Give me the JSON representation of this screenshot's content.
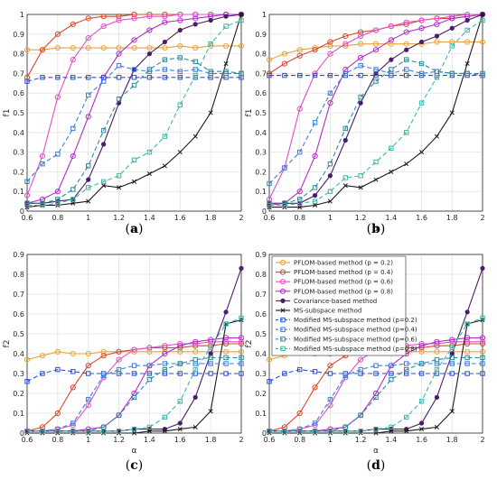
{
  "style": {
    "series": [
      {
        "color": "#e8a33a",
        "dash": "",
        "marker": "circle"
      },
      {
        "color": "#d9482b",
        "dash": "",
        "marker": "circle"
      },
      {
        "color": "#e04fc8",
        "dash": "",
        "marker": "circle"
      },
      {
        "color": "#b02fc9",
        "dash": "",
        "marker": "circle"
      },
      {
        "color": "#4a1c6b",
        "dash": "",
        "marker": "dot"
      },
      {
        "color": "#1a1a1a",
        "dash": "",
        "marker": "x"
      },
      {
        "color": "#2a4fd6",
        "dash": "5,3",
        "marker": "square"
      },
      {
        "color": "#3a7fdc",
        "dash": "5,3",
        "marker": "square"
      },
      {
        "color": "#2f8a9a",
        "dash": "5,3",
        "marker": "square"
      },
      {
        "color": "#3fb6a6",
        "dash": "5,3",
        "marker": "square"
      }
    ]
  },
  "chart_data": [
    {
      "type": "line",
      "caption_letter": "a",
      "xlabel": "α",
      "ylabel": "f1",
      "xlim": [
        0.6,
        2
      ],
      "ylim": [
        0,
        1
      ],
      "xticks": [
        "0.6",
        "0.8",
        "1",
        "1.2",
        "1.4",
        "1.6",
        "1.8",
        "2"
      ],
      "yticks": [
        "0",
        "0.1",
        "0.2",
        "0.3",
        "0.4",
        "0.5",
        "0.6",
        "0.7",
        "0.8",
        "0.9",
        "1"
      ],
      "x": [
        0.6,
        0.7,
        0.8,
        0.9,
        1.0,
        1.1,
        1.2,
        1.3,
        1.4,
        1.5,
        1.6,
        1.7,
        1.8,
        1.9,
        2.0
      ],
      "series": [
        {
          "values": [
            0.82,
            0.82,
            0.83,
            0.83,
            0.83,
            0.83,
            0.83,
            0.83,
            0.83,
            0.83,
            0.84,
            0.83,
            0.84,
            0.84,
            0.84
          ]
        },
        {
          "values": [
            0.68,
            0.82,
            0.9,
            0.95,
            0.98,
            0.99,
            0.99,
            1.0,
            1.0,
            1.0,
            1.0,
            1.0,
            1.0,
            1.0,
            1.0
          ]
        },
        {
          "values": [
            0.08,
            0.28,
            0.58,
            0.77,
            0.88,
            0.94,
            0.97,
            0.98,
            0.99,
            0.99,
            1.0,
            1.0,
            1.0,
            1.0,
            1.0
          ]
        },
        {
          "values": [
            0.04,
            0.06,
            0.1,
            0.28,
            0.48,
            0.68,
            0.8,
            0.87,
            0.92,
            0.96,
            0.97,
            0.98,
            0.99,
            1.0,
            1.0
          ]
        },
        {
          "values": [
            0.04,
            0.04,
            0.05,
            0.06,
            0.16,
            0.34,
            0.55,
            0.72,
            0.8,
            0.86,
            0.92,
            0.95,
            0.97,
            0.99,
            1.0
          ]
        },
        {
          "values": [
            0.02,
            0.03,
            0.03,
            0.04,
            0.05,
            0.13,
            0.12,
            0.15,
            0.19,
            0.23,
            0.3,
            0.38,
            0.5,
            0.75,
            1.0
          ]
        },
        {
          "values": [
            0.66,
            0.68,
            0.68,
            0.68,
            0.68,
            0.68,
            0.68,
            0.68,
            0.68,
            0.68,
            0.68,
            0.68,
            0.68,
            0.68,
            0.68
          ]
        },
        {
          "values": [
            0.15,
            0.24,
            0.29,
            0.42,
            0.59,
            0.66,
            0.74,
            0.72,
            0.71,
            0.72,
            0.71,
            0.72,
            0.7,
            0.7,
            0.7
          ]
        },
        {
          "values": [
            0.04,
            0.04,
            0.06,
            0.11,
            0.23,
            0.41,
            0.57,
            0.64,
            0.72,
            0.77,
            0.78,
            0.76,
            0.71,
            0.71,
            0.7
          ]
        },
        {
          "values": [
            0.03,
            0.03,
            0.04,
            0.06,
            0.12,
            0.15,
            0.18,
            0.26,
            0.3,
            0.38,
            0.54,
            0.69,
            0.85,
            0.94,
            0.97
          ]
        }
      ]
    },
    {
      "type": "line",
      "caption_letter": "b",
      "xlabel": "α",
      "ylabel": "f1",
      "xlim": [
        0.6,
        2
      ],
      "ylim": [
        0,
        1
      ],
      "xticks": [
        "0.6",
        "0.8",
        "1",
        "1.2",
        "1.4",
        "1.6",
        "1.8",
        "2"
      ],
      "yticks": [
        "0",
        "0.1",
        "0.2",
        "0.3",
        "0.4",
        "0.5",
        "0.6",
        "0.7",
        "0.8",
        "0.9",
        "1"
      ],
      "x": [
        0.6,
        0.7,
        0.8,
        0.9,
        1.0,
        1.1,
        1.2,
        1.3,
        1.4,
        1.5,
        1.6,
        1.7,
        1.8,
        1.9,
        2.0
      ],
      "series": [
        {
          "values": [
            0.77,
            0.8,
            0.82,
            0.83,
            0.84,
            0.84,
            0.85,
            0.85,
            0.85,
            0.85,
            0.85,
            0.86,
            0.86,
            0.86,
            0.86
          ]
        },
        {
          "values": [
            0.7,
            0.75,
            0.79,
            0.82,
            0.86,
            0.89,
            0.91,
            0.92,
            0.94,
            0.95,
            0.97,
            0.98,
            0.98,
            0.99,
            1.0
          ]
        },
        {
          "values": [
            0.06,
            0.22,
            0.52,
            0.7,
            0.8,
            0.85,
            0.89,
            0.92,
            0.94,
            0.96,
            0.97,
            0.98,
            0.99,
            1.0,
            1.0
          ]
        },
        {
          "values": [
            0.03,
            0.04,
            0.1,
            0.28,
            0.55,
            0.72,
            0.78,
            0.82,
            0.87,
            0.91,
            0.93,
            0.95,
            0.98,
            0.99,
            1.0
          ]
        },
        {
          "values": [
            0.04,
            0.04,
            0.04,
            0.08,
            0.18,
            0.36,
            0.55,
            0.7,
            0.77,
            0.82,
            0.86,
            0.89,
            0.93,
            0.97,
            1.0
          ]
        },
        {
          "values": [
            0.02,
            0.02,
            0.02,
            0.03,
            0.05,
            0.13,
            0.12,
            0.16,
            0.2,
            0.24,
            0.3,
            0.38,
            0.5,
            0.75,
            1.0
          ]
        },
        {
          "values": [
            0.69,
            0.69,
            0.69,
            0.69,
            0.69,
            0.69,
            0.69,
            0.69,
            0.69,
            0.69,
            0.69,
            0.69,
            0.69,
            0.69,
            0.69
          ]
        },
        {
          "values": [
            0.14,
            0.22,
            0.3,
            0.45,
            0.6,
            0.7,
            0.74,
            0.72,
            0.7,
            0.72,
            0.7,
            0.71,
            0.7,
            0.7,
            0.69
          ]
        },
        {
          "values": [
            0.04,
            0.04,
            0.06,
            0.12,
            0.24,
            0.42,
            0.58,
            0.66,
            0.72,
            0.77,
            0.75,
            0.71,
            0.7,
            0.7,
            0.7
          ]
        },
        {
          "values": [
            0.03,
            0.03,
            0.04,
            0.05,
            0.1,
            0.17,
            0.18,
            0.25,
            0.32,
            0.4,
            0.55,
            0.68,
            0.84,
            0.92,
            0.97
          ]
        }
      ]
    },
    {
      "type": "line",
      "caption_letter": "c",
      "xlabel": "α",
      "ylabel": "f2",
      "xlim": [
        0.6,
        2
      ],
      "ylim": [
        0,
        0.9
      ],
      "xticks": [
        "0.6",
        "0.8",
        "1",
        "1.2",
        "1.4",
        "1.6",
        "1.8",
        "2"
      ],
      "yticks": [
        "0",
        "0.1",
        "0.2",
        "0.3",
        "0.4",
        "0.5",
        "0.6",
        "0.7",
        "0.8",
        "0.9"
      ],
      "x": [
        0.6,
        0.7,
        0.8,
        0.9,
        1.0,
        1.1,
        1.2,
        1.3,
        1.4,
        1.5,
        1.6,
        1.7,
        1.8,
        1.9,
        2.0
      ],
      "series": [
        {
          "values": [
            0.37,
            0.39,
            0.41,
            0.4,
            0.4,
            0.41,
            0.41,
            0.41,
            0.41,
            0.41,
            0.41,
            0.41,
            0.41,
            0.41,
            0.41
          ]
        },
        {
          "values": [
            0.01,
            0.03,
            0.1,
            0.23,
            0.34,
            0.39,
            0.41,
            0.42,
            0.43,
            0.43,
            0.43,
            0.44,
            0.44,
            0.45,
            0.45
          ]
        },
        {
          "values": [
            0.01,
            0.01,
            0.02,
            0.04,
            0.14,
            0.28,
            0.37,
            0.42,
            0.43,
            0.44,
            0.45,
            0.45,
            0.46,
            0.46,
            0.46
          ]
        },
        {
          "values": [
            0.01,
            0.01,
            0.01,
            0.01,
            0.02,
            0.03,
            0.09,
            0.2,
            0.34,
            0.4,
            0.44,
            0.46,
            0.47,
            0.48,
            0.48
          ]
        },
        {
          "values": [
            0.01,
            0.01,
            0.01,
            0.01,
            0.01,
            0.01,
            0.01,
            0.02,
            0.02,
            0.02,
            0.05,
            0.18,
            0.4,
            0.61,
            0.83
          ]
        },
        {
          "values": [
            0.0,
            0.0,
            0.0,
            0.0,
            0.0,
            0.0,
            0.0,
            0.0,
            0.01,
            0.01,
            0.02,
            0.03,
            0.11,
            0.55,
            0.57
          ]
        },
        {
          "values": [
            0.26,
            0.3,
            0.32,
            0.31,
            0.3,
            0.3,
            0.3,
            0.3,
            0.3,
            0.3,
            0.3,
            0.3,
            0.3,
            0.3,
            0.3
          ]
        },
        {
          "values": [
            0.01,
            0.01,
            0.02,
            0.05,
            0.17,
            0.29,
            0.32,
            0.34,
            0.34,
            0.35,
            0.35,
            0.35,
            0.35,
            0.35,
            0.35
          ]
        },
        {
          "values": [
            0.01,
            0.01,
            0.01,
            0.01,
            0.01,
            0.03,
            0.09,
            0.18,
            0.27,
            0.32,
            0.35,
            0.37,
            0.38,
            0.38,
            0.38
          ]
        },
        {
          "values": [
            0.01,
            0.01,
            0.01,
            0.01,
            0.01,
            0.01,
            0.01,
            0.02,
            0.03,
            0.08,
            0.16,
            0.32,
            0.43,
            0.55,
            0.58
          ]
        }
      ]
    },
    {
      "type": "line",
      "caption_letter": "d",
      "xlabel": "α",
      "ylabel": "f2",
      "xlim": [
        0.6,
        2
      ],
      "ylim": [
        0,
        0.9
      ],
      "xticks": [
        "0.6",
        "0.8",
        "1",
        "1.2",
        "1.4",
        "1.6",
        "1.8",
        "2"
      ],
      "yticks": [
        "0",
        "0.1",
        "0.2",
        "0.3",
        "0.4",
        "0.5",
        "0.6",
        "0.7",
        "0.8",
        "0.9"
      ],
      "x": [
        0.6,
        0.7,
        0.8,
        0.9,
        1.0,
        1.1,
        1.2,
        1.3,
        1.4,
        1.5,
        1.6,
        1.7,
        1.8,
        1.9,
        2.0
      ],
      "legend": {
        "position": "top-left",
        "entries": [
          "PFLOM-based method (p = 0.2)",
          "PFLOM-based method (p = 0.4)",
          "PFLOM-based method (p = 0.6)",
          "PFLOM-based method (p = 0.8)",
          "Covariance-based method",
          "MS-subspace method",
          "Modified MS-subspace method (p=0.2)",
          "Modified MS-subspace method (p=0.4)",
          "Modified MS-subspace method (p=0.6)",
          "Modified MS-subspace method (p=0.8)"
        ]
      },
      "series": [
        {
          "values": [
            0.37,
            0.39,
            0.41,
            0.4,
            0.4,
            0.41,
            0.41,
            0.41,
            0.41,
            0.41,
            0.41,
            0.41,
            0.41,
            0.41,
            0.41
          ]
        },
        {
          "values": [
            0.01,
            0.03,
            0.1,
            0.23,
            0.34,
            0.39,
            0.41,
            0.42,
            0.43,
            0.43,
            0.43,
            0.44,
            0.44,
            0.45,
            0.45
          ]
        },
        {
          "values": [
            0.01,
            0.01,
            0.02,
            0.04,
            0.14,
            0.28,
            0.37,
            0.42,
            0.43,
            0.44,
            0.45,
            0.45,
            0.46,
            0.46,
            0.46
          ]
        },
        {
          "values": [
            0.01,
            0.01,
            0.01,
            0.01,
            0.02,
            0.03,
            0.09,
            0.2,
            0.34,
            0.4,
            0.44,
            0.46,
            0.47,
            0.48,
            0.48
          ]
        },
        {
          "values": [
            0.01,
            0.01,
            0.01,
            0.01,
            0.01,
            0.01,
            0.01,
            0.02,
            0.02,
            0.02,
            0.05,
            0.18,
            0.4,
            0.61,
            0.83
          ]
        },
        {
          "values": [
            0.0,
            0.0,
            0.0,
            0.0,
            0.0,
            0.0,
            0.0,
            0.0,
            0.01,
            0.01,
            0.02,
            0.03,
            0.11,
            0.55,
            0.57
          ]
        },
        {
          "values": [
            0.26,
            0.3,
            0.32,
            0.31,
            0.3,
            0.3,
            0.3,
            0.3,
            0.3,
            0.3,
            0.3,
            0.3,
            0.3,
            0.3,
            0.3
          ]
        },
        {
          "values": [
            0.01,
            0.01,
            0.02,
            0.05,
            0.17,
            0.29,
            0.32,
            0.34,
            0.34,
            0.35,
            0.35,
            0.35,
            0.35,
            0.35,
            0.35
          ]
        },
        {
          "values": [
            0.01,
            0.01,
            0.01,
            0.01,
            0.01,
            0.03,
            0.09,
            0.18,
            0.27,
            0.32,
            0.35,
            0.37,
            0.38,
            0.38,
            0.38
          ]
        },
        {
          "values": [
            0.01,
            0.01,
            0.01,
            0.01,
            0.01,
            0.01,
            0.01,
            0.02,
            0.03,
            0.08,
            0.16,
            0.32,
            0.43,
            0.55,
            0.58
          ]
        }
      ]
    }
  ]
}
